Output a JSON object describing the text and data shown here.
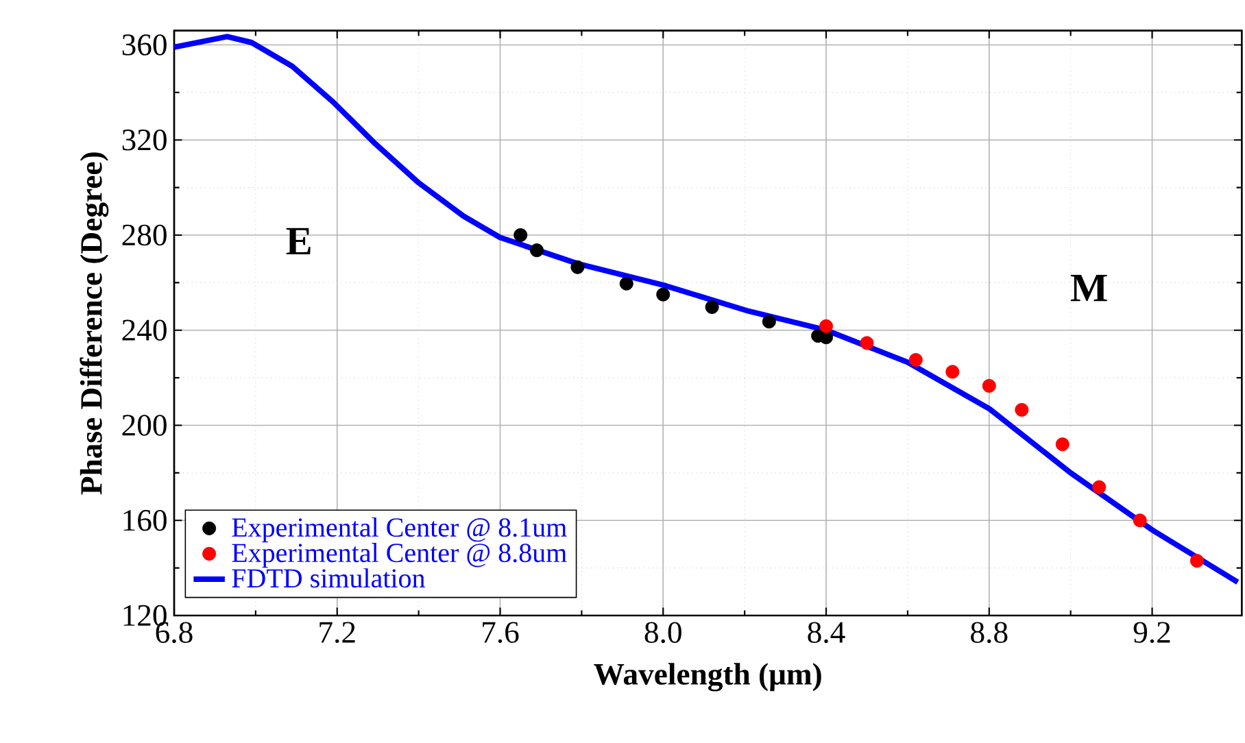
{
  "chart_data": {
    "type": "line",
    "xlabel": "Wavelength (μm)",
    "ylabel": "Phase Difference (Degree)",
    "xlim": [
      6.8,
      9.42
    ],
    "ylim": [
      120,
      366
    ],
    "xticks": [
      {
        "value": 6.8,
        "label": "6.8"
      },
      {
        "value": 7.2,
        "label": "7.2"
      },
      {
        "value": 7.6,
        "label": "7.6"
      },
      {
        "value": 8.0,
        "label": "8.0"
      },
      {
        "value": 8.4,
        "label": "8.4"
      },
      {
        "value": 8.8,
        "label": "8.8"
      },
      {
        "value": 9.2,
        "label": "9.2"
      }
    ],
    "yticks": [
      120,
      160,
      200,
      240,
      280,
      320,
      360
    ],
    "grid": true,
    "legend": "bottom left",
    "annotations": [
      "E",
      "M"
    ],
    "series": [
      {
        "name": "Experimental Center @ 8.1um",
        "type": "scatter",
        "marker": "circle",
        "color": "#000000",
        "x": [
          7.65,
          7.69,
          7.79,
          7.91,
          8.0,
          8.12,
          8.26,
          8.38,
          8.4
        ],
        "values": [
          280,
          273.6,
          266.5,
          259.6,
          255,
          249.7,
          243.6,
          237.6,
          237
        ]
      },
      {
        "name": "Experimental Center @ 8.8um",
        "type": "scatter",
        "marker": "circle",
        "color": "#ff0000",
        "x": [
          8.4,
          8.5,
          8.62,
          8.71,
          8.8,
          8.88,
          8.98,
          9.07,
          9.17,
          9.31
        ],
        "values": [
          241.7,
          234.6,
          227.5,
          222.5,
          216.6,
          206.5,
          192,
          174,
          160,
          143
        ]
      },
      {
        "name": "FDTD simulation",
        "marker": "none",
        "color": "#0000ff",
        "x": [
          6.8,
          6.93,
          6.99,
          7.09,
          7.19,
          7.29,
          7.4,
          7.51,
          7.6,
          7.79,
          8.0,
          8.21,
          8.4,
          8.6,
          8.8,
          9.0,
          9.2,
          9.41
        ],
        "values": [
          359,
          363.5,
          361,
          351,
          336,
          319,
          302,
          288,
          279,
          268,
          259,
          248,
          240,
          226.5,
          207,
          180,
          156,
          134
        ]
      }
    ]
  }
}
